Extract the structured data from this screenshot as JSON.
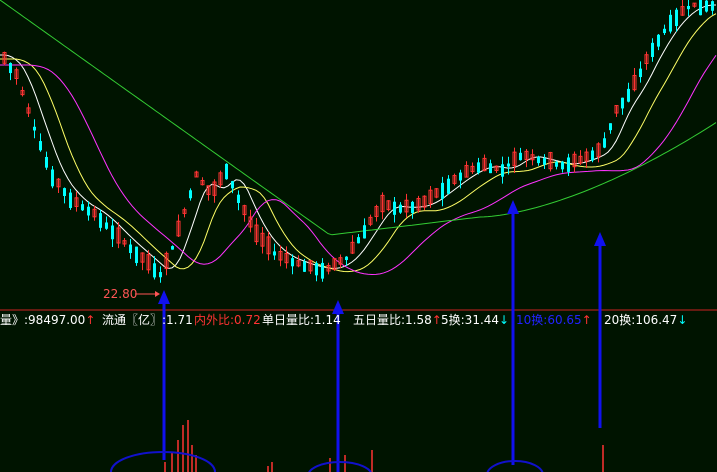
{
  "chart_data": {
    "type": "candlestick",
    "price_low_marker": "22.80",
    "moving_averages": [
      {
        "color": "#ffffff",
        "role": "short"
      },
      {
        "color": "#ffff66",
        "role": "medium"
      },
      {
        "color": "#ff33ff",
        "role": "long"
      },
      {
        "color": "#33cc33",
        "role": "longest"
      }
    ],
    "candle_colors": {
      "up": "#ff3333",
      "down": "#00ffff"
    }
  },
  "status_bar": {
    "items": [
      {
        "label": "量》:98497.00",
        "arrow": "↑",
        "label_color": "#ffffff",
        "arrow_color": "#ff3333"
      },
      {
        "label": "流通〖亿〗:1.71",
        "arrow": "",
        "label_color": "#ffffff",
        "arrow_color": "#ffffff"
      },
      {
        "label": "内外比:0.72",
        "arrow": "",
        "label_color": "#ff3333",
        "arrow_color": "#ff3333"
      },
      {
        "label": "单日量比:1.14",
        "arrow": "",
        "label_color": "#ffffff",
        "arrow_color": "#ffffff"
      },
      {
        "label": "五日量比:1.58",
        "arrow": "↑",
        "label_color": "#ffffff",
        "arrow_color": "#ff3333"
      },
      {
        "label": "5换:31.44",
        "arrow": "↓",
        "label_color": "#ffffff",
        "arrow_color": "#00ffff"
      },
      {
        "label": "10换:60.65",
        "arrow": "↑",
        "label_color": "#2222ff",
        "arrow_color": "#ff3333"
      },
      {
        "label": "20换:106.47",
        "arrow": "↓",
        "label_color": "#ffffff",
        "arrow_color": "#00ffff"
      }
    ]
  }
}
